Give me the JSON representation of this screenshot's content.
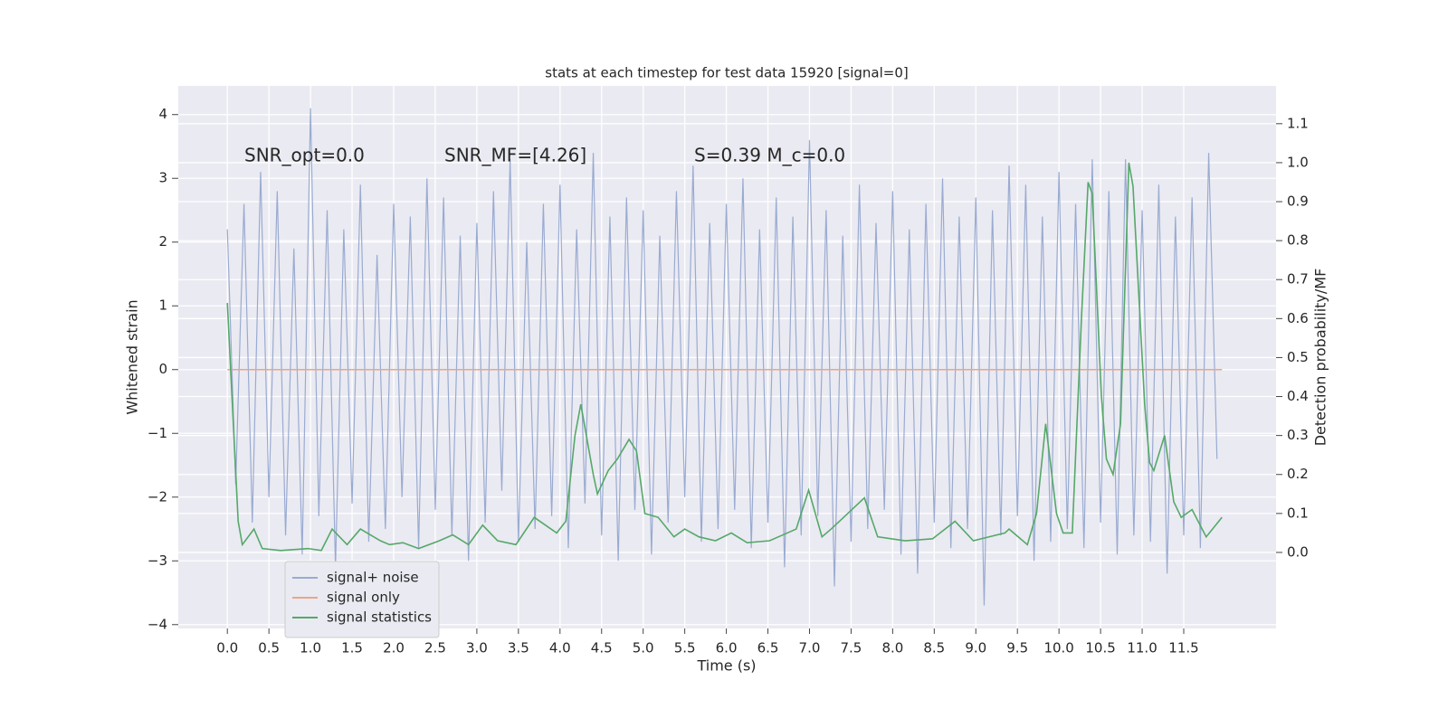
{
  "chart_data": {
    "type": "line",
    "title": "stats at each timestep for test data 15920 [signal=0]",
    "xlabel": "Time (s)",
    "ylabel": "Whitened strain",
    "y2label": "Detection probability/MF",
    "annotations": [
      "SNR_opt=0.0",
      "SNR_MF=[4.26]",
      "S=0.39   M_c=0.0"
    ],
    "grid": true,
    "legend_loc": "lower left",
    "xlim": [
      -0.59,
      12.61
    ],
    "ylim": [
      -4.06,
      4.45
    ],
    "y2lim": [
      -0.195,
      1.197
    ],
    "xticks": [
      {
        "value": 0,
        "label": "0.0"
      },
      0.5,
      {
        "value": 1,
        "label": "1.0"
      },
      1.5,
      {
        "value": 2,
        "label": "2.0"
      },
      2.5,
      {
        "value": 3,
        "label": "3.0"
      },
      3.5,
      {
        "value": 4,
        "label": "4.0"
      },
      4.5,
      {
        "value": 5,
        "label": "5.0"
      },
      5.5,
      {
        "value": 6,
        "label": "6.0"
      },
      6.5,
      {
        "value": 7,
        "label": "7.0"
      },
      7.5,
      {
        "value": 8,
        "label": "8.0"
      },
      8.5,
      {
        "value": 9,
        "label": "9.0"
      },
      9.5,
      {
        "value": 10,
        "label": "10.0"
      },
      10.5,
      {
        "value": 11,
        "label": "11.0"
      },
      11.5
    ],
    "yticks": [
      {
        "value": -4,
        "label": "−4"
      },
      {
        "value": -3,
        "label": "−3"
      },
      {
        "value": -2,
        "label": "−2"
      },
      {
        "value": -1,
        "label": "−1"
      },
      0,
      1,
      2,
      3,
      4
    ],
    "y2ticks": [
      {
        "value": 0,
        "label": "0.0"
      },
      0.1,
      0.2,
      0.3,
      0.4,
      0.5,
      0.6,
      0.7,
      0.8,
      0.9,
      {
        "value": 1,
        "label": "1.0"
      },
      1.1
    ],
    "series": [
      {
        "name": "signal+ noise",
        "color": "#9aabd1",
        "x": [
          0.0,
          0.1,
          0.2,
          0.3,
          0.4,
          0.5,
          0.6,
          0.7,
          0.8,
          0.9,
          1.0,
          1.1,
          1.2,
          1.3,
          1.4,
          1.5,
          1.6,
          1.7,
          1.8,
          1.9,
          2.0,
          2.1,
          2.2,
          2.3,
          2.4,
          2.5,
          2.6,
          2.7,
          2.8,
          2.9,
          3.0,
          3.1,
          3.2,
          3.3,
          3.4,
          3.5,
          3.6,
          3.7,
          3.8,
          3.9,
          4.0,
          4.1,
          4.2,
          4.3,
          4.4,
          4.5,
          4.6,
          4.7,
          4.8,
          4.9,
          5.0,
          5.1,
          5.2,
          5.3,
          5.4,
          5.5,
          5.6,
          5.7,
          5.8,
          5.9,
          6.0,
          6.1,
          6.2,
          6.3,
          6.4,
          6.5,
          6.6,
          6.7,
          6.8,
          6.9,
          7.0,
          7.1,
          7.2,
          7.3,
          7.4,
          7.5,
          7.6,
          7.7,
          7.8,
          7.9,
          8.0,
          8.1,
          8.2,
          8.3,
          8.4,
          8.5,
          8.6,
          8.7,
          8.8,
          8.9,
          9.0,
          9.1,
          9.2,
          9.3,
          9.4,
          9.5,
          9.6,
          9.7,
          9.8,
          9.9,
          10.0,
          10.1,
          10.2,
          10.3,
          10.4,
          10.5,
          10.6,
          10.7,
          10.8,
          10.9,
          11.0,
          11.1,
          11.2,
          11.3,
          11.4,
          11.5,
          11.6,
          11.7,
          11.8,
          11.9
        ],
        "values": [
          2.2,
          -1.8,
          2.6,
          -2.4,
          3.1,
          -2.0,
          2.8,
          -2.6,
          1.9,
          -2.9,
          4.1,
          -2.3,
          2.5,
          -3.1,
          2.2,
          -2.1,
          2.9,
          -2.7,
          1.8,
          -2.5,
          2.6,
          -2.0,
          2.4,
          -2.8,
          3.0,
          -2.2,
          2.7,
          -2.6,
          2.1,
          -3.0,
          2.3,
          -2.4,
          2.8,
          -1.9,
          3.3,
          -2.7,
          2.0,
          -2.5,
          2.6,
          -2.3,
          2.9,
          -2.8,
          2.2,
          -2.1,
          3.4,
          -2.6,
          2.4,
          -3.0,
          2.7,
          -2.2,
          2.5,
          -2.9,
          2.1,
          -2.4,
          2.8,
          -2.0,
          3.2,
          -2.7,
          2.3,
          -2.5,
          2.6,
          -2.2,
          3.0,
          -2.8,
          2.2,
          -2.4,
          2.7,
          -3.1,
          2.4,
          -2.6,
          3.6,
          -2.3,
          2.5,
          -3.4,
          2.1,
          -2.7,
          2.9,
          -2.5,
          2.3,
          -2.2,
          2.8,
          -2.9,
          2.2,
          -3.2,
          2.6,
          -2.4,
          3.0,
          -2.8,
          2.4,
          -2.5,
          2.7,
          -3.7,
          2.5,
          -2.6,
          3.2,
          -2.3,
          2.9,
          -3.0,
          2.4,
          -2.7,
          3.1,
          -2.5,
          2.6,
          -2.8,
          3.3,
          -2.4,
          2.8,
          -2.9,
          3.3,
          -2.6,
          2.5,
          -2.7,
          2.9,
          -3.2,
          2.4,
          -2.6,
          2.7,
          -2.8,
          3.4,
          -1.4
        ]
      },
      {
        "name": "signal only",
        "color": "#e6a88a",
        "x": [
          0,
          11.96
        ],
        "values": [
          0,
          0
        ]
      },
      {
        "name": "signal statistics",
        "color": "#55a868",
        "axis": "y2",
        "x": [
          0,
          0.13,
          0.18,
          0.32,
          0.42,
          0.64,
          0.97,
          1.13,
          1.26,
          1.44,
          1.6,
          1.84,
          1.95,
          2.11,
          2.3,
          2.55,
          2.71,
          2.9,
          3.07,
          3.25,
          3.47,
          3.69,
          3.96,
          4.07,
          4.18,
          4.25,
          4.4,
          4.45,
          4.58,
          4.69,
          4.83,
          4.92,
          5.02,
          5.18,
          5.37,
          5.5,
          5.67,
          5.87,
          6.06,
          6.25,
          6.52,
          6.68,
          6.84,
          6.99,
          7.15,
          7.26,
          7.41,
          7.66,
          7.82,
          8.15,
          8.48,
          8.75,
          8.97,
          9.35,
          9.4,
          9.62,
          9.73,
          9.84,
          9.97,
          10.05,
          10.16,
          10.27,
          10.35,
          10.4,
          10.51,
          10.57,
          10.65,
          10.74,
          10.84,
          10.89,
          11.03,
          11.09,
          11.14,
          11.27,
          11.38,
          11.47,
          11.6,
          11.77,
          11.96
        ],
        "values": [
          0.64,
          0.08,
          0.02,
          0.06,
          0.01,
          0.005,
          0.01,
          0.005,
          0.06,
          0.02,
          0.06,
          0.03,
          0.02,
          0.025,
          0.01,
          0.03,
          0.045,
          0.02,
          0.07,
          0.03,
          0.02,
          0.09,
          0.05,
          0.08,
          0.3,
          0.38,
          0.2,
          0.15,
          0.21,
          0.24,
          0.29,
          0.26,
          0.1,
          0.09,
          0.04,
          0.06,
          0.04,
          0.03,
          0.05,
          0.025,
          0.03,
          0.045,
          0.06,
          0.16,
          0.04,
          0.06,
          0.09,
          0.14,
          0.04,
          0.03,
          0.035,
          0.08,
          0.03,
          0.05,
          0.06,
          0.02,
          0.1,
          0.33,
          0.1,
          0.05,
          0.05,
          0.6,
          0.95,
          0.92,
          0.4,
          0.24,
          0.2,
          0.33,
          1.0,
          0.94,
          0.38,
          0.23,
          0.21,
          0.3,
          0.13,
          0.09,
          0.11,
          0.04,
          0.09
        ]
      }
    ]
  }
}
